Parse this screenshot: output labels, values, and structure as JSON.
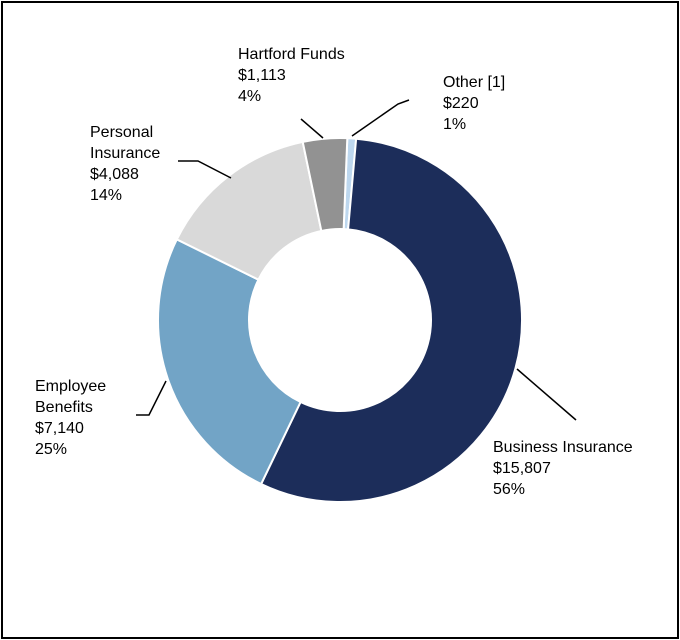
{
  "chart_data": {
    "type": "pie",
    "variant": "donut",
    "start_category": "Other [1]",
    "direction": "clockwise",
    "slices": [
      {
        "name": "Other [1]",
        "value": 220,
        "value_label": "$220",
        "percent": "1%",
        "color": "#bdd7ee"
      },
      {
        "name": "Business Insurance",
        "value": 15807,
        "value_label": "$15,807",
        "percent": "56%",
        "color": "#1c2d5a"
      },
      {
        "name": "Employee Benefits",
        "value": 7140,
        "value_label": "$7,140",
        "percent": "25%",
        "color": "#72a4c6"
      },
      {
        "name": "Personal Insurance",
        "value": 4088,
        "value_label": "$4,088",
        "percent": "14%",
        "color": "#d9d9d9"
      },
      {
        "name": "Hartford Funds",
        "value": 1113,
        "value_label": "$1,113",
        "percent": "4%",
        "color": "#929292"
      }
    ]
  },
  "labels": {
    "hartford_funds": {
      "name": "Hartford Funds",
      "value": "$1,113",
      "percent": "4%"
    },
    "other": {
      "name": "Other [1]",
      "value": "$220",
      "percent": "1%"
    },
    "personal_insurance": {
      "name_line1": "Personal",
      "name_line2": "Insurance",
      "value": "$4,088",
      "percent": "14%"
    },
    "employee_benefits": {
      "name_line1": "Employee",
      "name_line2": "Benefits",
      "value": "$7,140",
      "percent": "25%"
    },
    "business_insurance": {
      "name": "Business Insurance",
      "value": "$15,807",
      "percent": "56%"
    }
  },
  "colors": {
    "border": "#000000",
    "background": "#ffffff",
    "leader": "#000000"
  }
}
